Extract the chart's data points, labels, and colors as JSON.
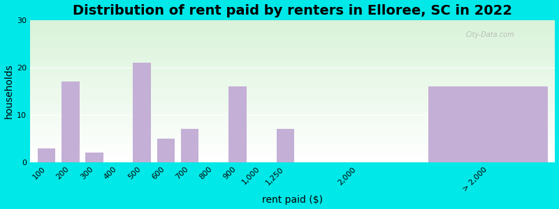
{
  "title": "Distribution of rent paid by renters in Elloree, SC in 2022",
  "xlabel": "rent paid ($)",
  "ylabel": "households",
  "bar_labels": [
    "100",
    "200",
    "300",
    "400",
    "500",
    "600",
    "700",
    "800",
    "900",
    "1,000",
    "1,250",
    "2,000",
    "> 2,000"
  ],
  "bar_values": [
    3,
    17,
    2,
    0,
    21,
    5,
    7,
    0,
    16,
    0,
    7,
    0,
    16
  ],
  "bar_color": "#c4afd6",
  "background_color": "#00e8e8",
  "plot_grad_top": "#d8edd8",
  "plot_grad_bottom": "#f4fff4",
  "ylim": [
    0,
    30
  ],
  "yticks": [
    0,
    10,
    20,
    30
  ],
  "title_fontsize": 14,
  "axis_label_fontsize": 10,
  "tick_fontsize": 8,
  "watermark": "City-Data.com"
}
